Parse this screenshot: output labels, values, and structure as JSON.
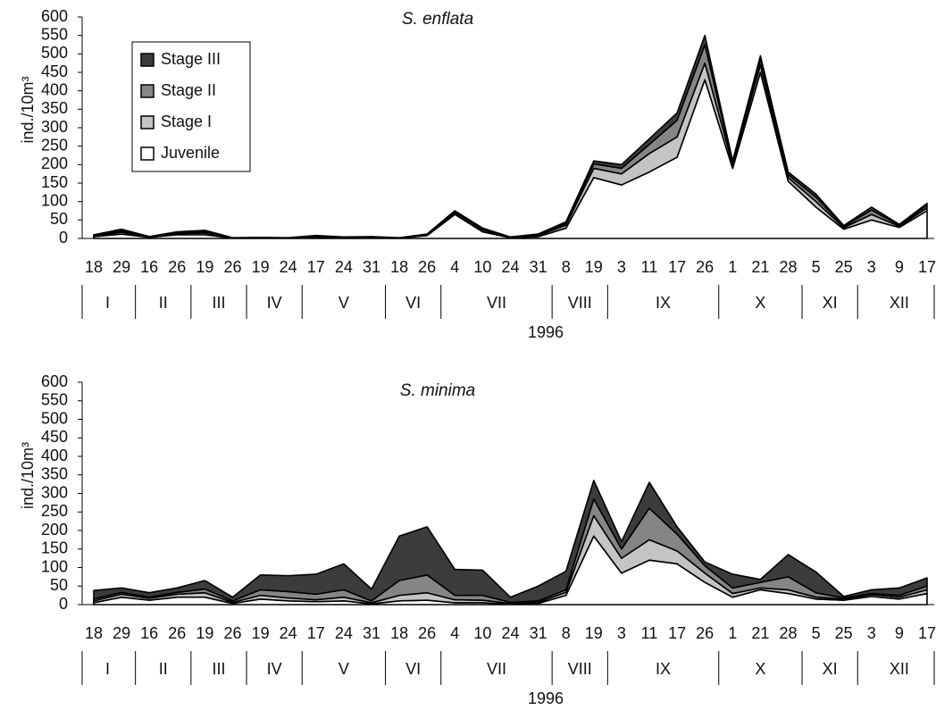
{
  "chart_data": [
    {
      "type": "area",
      "title": "S. enflata",
      "y_label": "ind./10m³",
      "x_label": "1996",
      "legend": "upper left",
      "ylim": [
        0,
        600
      ],
      "yticks": [
        0,
        50,
        100,
        150,
        200,
        250,
        300,
        350,
        400,
        450,
        500,
        550,
        600
      ],
      "months": [
        {
          "name": "I",
          "days": [
            "18",
            "29"
          ]
        },
        {
          "name": "II",
          "days": [
            "16",
            "26"
          ]
        },
        {
          "name": "III",
          "days": [
            "19",
            "26"
          ]
        },
        {
          "name": "IV",
          "days": [
            "19",
            "24"
          ]
        },
        {
          "name": "V",
          "days": [
            "17",
            "24",
            "31"
          ]
        },
        {
          "name": "VI",
          "days": [
            "18",
            "26"
          ]
        },
        {
          "name": "VII",
          "days": [
            "4",
            "10",
            "24",
            "31"
          ]
        },
        {
          "name": "VIII",
          "days": [
            "8",
            "19"
          ]
        },
        {
          "name": "IX",
          "days": [
            "3",
            "11",
            "17",
            "26"
          ]
        },
        {
          "name": "X",
          "days": [
            "1",
            "21",
            "28"
          ]
        },
        {
          "name": "XI",
          "days": [
            "5",
            "25"
          ]
        },
        {
          "name": "XII",
          "days": [
            "3",
            "9",
            "17"
          ]
        }
      ],
      "series": [
        {
          "name": "Juvenile",
          "color": "#ffffff",
          "values": [
            5,
            12,
            3,
            10,
            10,
            1,
            2,
            1,
            4,
            2,
            3,
            1,
            8,
            65,
            18,
            2,
            5,
            28,
            165,
            145,
            180,
            220,
            430,
            190,
            450,
            155,
            85,
            25,
            50,
            30,
            75
          ]
        },
        {
          "name": "Stage I",
          "color": "#c4c4c4",
          "values": [
            2,
            5,
            1,
            3,
            5,
            0,
            0,
            0,
            2,
            1,
            1,
            0,
            2,
            5,
            5,
            1,
            3,
            8,
            25,
            30,
            50,
            55,
            45,
            10,
            20,
            10,
            15,
            4,
            15,
            3,
            8
          ]
        },
        {
          "name": "Stage II",
          "color": "#858585",
          "values": [
            1,
            4,
            0,
            2,
            3,
            0,
            0,
            0,
            1,
            0,
            0,
            0,
            1,
            2,
            2,
            0,
            2,
            5,
            12,
            15,
            25,
            45,
            50,
            5,
            15,
            8,
            12,
            3,
            12,
            3,
            7
          ]
        },
        {
          "name": "Stage III",
          "color": "#3c3c3c",
          "values": [
            2,
            4,
            1,
            3,
            4,
            1,
            1,
            1,
            1,
            1,
            1,
            1,
            1,
            3,
            3,
            1,
            2,
            4,
            8,
            10,
            15,
            20,
            25,
            5,
            10,
            7,
            8,
            3,
            8,
            2,
            5
          ]
        }
      ]
    },
    {
      "type": "area",
      "title": "S. minima",
      "y_label": "ind./10m³",
      "x_label": "1996",
      "ylim": [
        0,
        600
      ],
      "yticks": [
        0,
        50,
        100,
        150,
        200,
        250,
        300,
        350,
        400,
        450,
        500,
        550,
        600
      ],
      "months": [
        {
          "name": "I",
          "days": [
            "18",
            "29"
          ]
        },
        {
          "name": "II",
          "days": [
            "16",
            "26"
          ]
        },
        {
          "name": "III",
          "days": [
            "19",
            "26"
          ]
        },
        {
          "name": "IV",
          "days": [
            "19",
            "24"
          ]
        },
        {
          "name": "V",
          "days": [
            "17",
            "24",
            "31"
          ]
        },
        {
          "name": "VI",
          "days": [
            "18",
            "26"
          ]
        },
        {
          "name": "VII",
          "days": [
            "4",
            "10",
            "24",
            "31"
          ]
        },
        {
          "name": "VIII",
          "days": [
            "8",
            "19"
          ]
        },
        {
          "name": "IX",
          "days": [
            "3",
            "11",
            "17",
            "26"
          ]
        },
        {
          "name": "X",
          "days": [
            "1",
            "21",
            "28"
          ]
        },
        {
          "name": "XI",
          "days": [
            "5",
            "25"
          ]
        },
        {
          "name": "XII",
          "days": [
            "3",
            "9",
            "17"
          ]
        }
      ],
      "series": [
        {
          "color": "#ffffff",
          "values": [
            5,
            20,
            12,
            20,
            20,
            3,
            15,
            10,
            8,
            10,
            2,
            10,
            12,
            5,
            5,
            1,
            3,
            25,
            185,
            85,
            120,
            110,
            60,
            20,
            40,
            30,
            15,
            12,
            22,
            15,
            30
          ]
        },
        {
          "color": "#c4c4c4",
          "values": [
            5,
            8,
            5,
            8,
            12,
            3,
            10,
            8,
            5,
            10,
            3,
            15,
            20,
            8,
            7,
            2,
            3,
            8,
            55,
            40,
            55,
            35,
            25,
            10,
            5,
            10,
            5,
            3,
            5,
            5,
            10
          ]
        },
        {
          "color": "#858585",
          "values": [
            5,
            5,
            3,
            5,
            10,
            4,
            15,
            17,
            15,
            20,
            5,
            40,
            48,
            12,
            13,
            3,
            4,
            7,
            45,
            25,
            85,
            45,
            20,
            15,
            15,
            35,
            12,
            3,
            3,
            5,
            10
          ]
        },
        {
          "color": "#3c3c3c",
          "values": [
            23,
            12,
            12,
            12,
            23,
            10,
            40,
            43,
            54,
            70,
            32,
            120,
            130,
            70,
            68,
            14,
            40,
            50,
            50,
            20,
            70,
            20,
            10,
            37,
            8,
            60,
            56,
            4,
            10,
            20,
            22
          ]
        }
      ]
    }
  ]
}
